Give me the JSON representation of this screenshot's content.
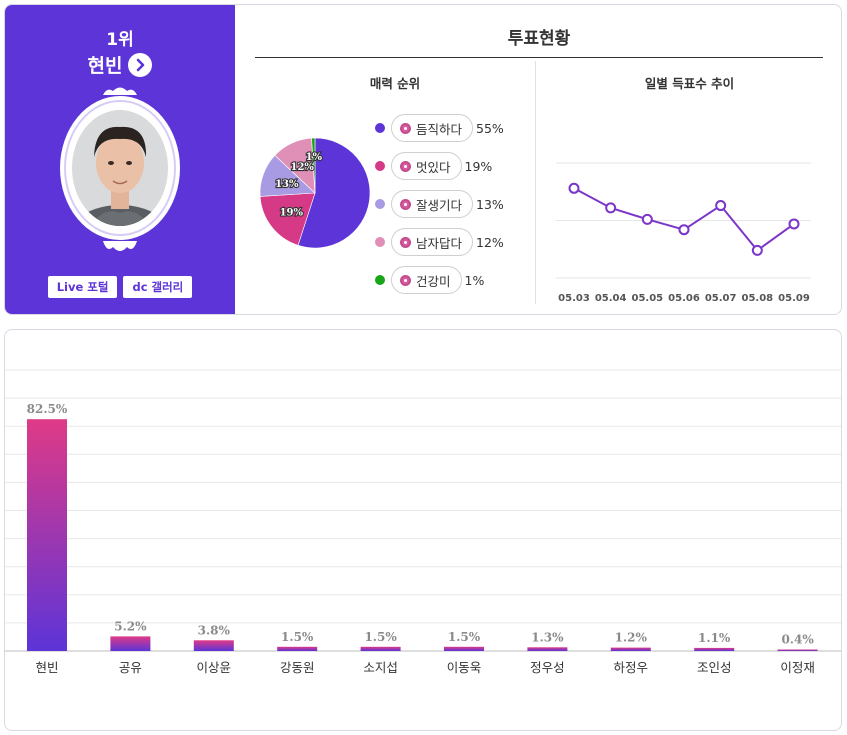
{
  "profile": {
    "rank": "1위",
    "name": "현빈",
    "links": [
      "Live 포털",
      "dc 갤러리"
    ]
  },
  "vote_status": {
    "title": "투표현황",
    "attraction_title": "매력 순위",
    "daily_title": "일별 득표수 추이"
  },
  "chart_data": [
    {
      "type": "pie",
      "title": "매력 순위",
      "categories": [
        "듬직하다",
        "멋있다",
        "잘생기다",
        "남자답다",
        "건강미"
      ],
      "values": [
        55,
        19,
        13,
        12,
        1
      ],
      "labels": [
        "55%",
        "19%",
        "13%",
        "12%",
        "1%"
      ],
      "slice_labels": [
        "",
        "19%",
        "13%",
        "12%",
        "1%"
      ],
      "colors": [
        "#5c34d8",
        "#d63a86",
        "#a99be3",
        "#e08fb7",
        "#1aa51a"
      ],
      "legend": "right"
    },
    {
      "type": "line",
      "title": "일별 득표수 추이",
      "x": [
        "05.03",
        "05.04",
        "05.05",
        "05.06",
        "05.07",
        "05.08",
        "05.09"
      ],
      "values": [
        78,
        61,
        51,
        42,
        63,
        24,
        47
      ],
      "ylim": [
        0,
        100
      ],
      "grid": true,
      "color": "#7c35c9"
    },
    {
      "type": "bar",
      "categories": [
        "현빈",
        "공유",
        "이상윤",
        "강동원",
        "소지섭",
        "이동욱",
        "정우성",
        "하정우",
        "조인성",
        "이정재"
      ],
      "values": [
        82.5,
        5.2,
        3.8,
        1.5,
        1.5,
        1.5,
        1.3,
        1.2,
        1.1,
        0.4
      ],
      "labels": [
        "82.5%",
        "5.2%",
        "3.8%",
        "1.5%",
        "1.5%",
        "1.5%",
        "1.3%",
        "1.2%",
        "1.1%",
        "0.4%"
      ],
      "ylim": [
        0,
        100
      ],
      "grid": true,
      "colors": [
        "#df3a86",
        "#5c34d8"
      ]
    }
  ]
}
